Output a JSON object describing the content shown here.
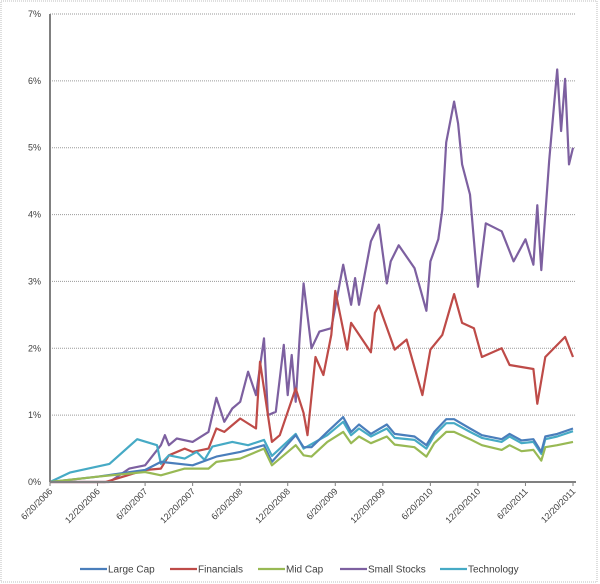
{
  "chart_data": {
    "type": "line",
    "title": "",
    "xlabel": "",
    "ylabel": "",
    "ylim": [
      0,
      7
    ],
    "y_unit": "%",
    "y_ticks": [
      "0%",
      "1%",
      "2%",
      "3%",
      "4%",
      "5%",
      "6%",
      "7%"
    ],
    "x_range": [
      "2006-06-20",
      "2011-12-20"
    ],
    "x_ticks": [
      "6/20/2006",
      "12/20/2006",
      "6/20/2007",
      "12/20/2007",
      "6/20/2008",
      "12/20/2008",
      "6/20/2009",
      "12/20/2009",
      "6/20/2010",
      "12/20/2010",
      "6/20/2011",
      "12/20/2011"
    ],
    "grid": "horizontal",
    "legend": "bottom",
    "series": [
      {
        "name": "Small Stocks",
        "color": "#7d60a0",
        "points": [
          [
            "2006-06-20",
            0
          ],
          [
            "2007-02-05",
            0
          ],
          [
            "2007-04-20",
            0.2
          ],
          [
            "2007-06-20",
            0.25
          ],
          [
            "2007-08-20",
            0.55
          ],
          [
            "2007-09-05",
            0.7
          ],
          [
            "2007-09-20",
            0.55
          ],
          [
            "2007-10-20",
            0.65
          ],
          [
            "2007-12-20",
            0.6
          ],
          [
            "2008-02-20",
            0.75
          ],
          [
            "2008-03-20",
            1.26
          ],
          [
            "2008-04-20",
            0.9
          ],
          [
            "2008-05-20",
            1.1
          ],
          [
            "2008-06-20",
            1.2
          ],
          [
            "2008-07-20",
            1.65
          ],
          [
            "2008-08-20",
            1.3
          ],
          [
            "2008-09-20",
            2.15
          ],
          [
            "2008-10-05",
            1.0
          ],
          [
            "2008-11-05",
            1.05
          ],
          [
            "2008-12-05",
            2.05
          ],
          [
            "2008-12-20",
            1.3
          ],
          [
            "2009-01-05",
            1.9
          ],
          [
            "2009-01-20",
            1.2
          ],
          [
            "2009-02-05",
            2.15
          ],
          [
            "2009-02-20",
            2.97
          ],
          [
            "2009-03-20",
            2.0
          ],
          [
            "2009-04-20",
            2.25
          ],
          [
            "2009-06-05",
            2.3
          ],
          [
            "2009-07-20",
            3.25
          ],
          [
            "2009-08-20",
            2.65
          ],
          [
            "2009-09-05",
            3.05
          ],
          [
            "2009-09-20",
            2.65
          ],
          [
            "2009-11-05",
            3.6
          ],
          [
            "2009-12-05",
            3.85
          ],
          [
            "2010-01-05",
            2.97
          ],
          [
            "2010-01-20",
            3.3
          ],
          [
            "2010-02-20",
            3.54
          ],
          [
            "2010-04-20",
            3.2
          ],
          [
            "2010-06-05",
            2.56
          ],
          [
            "2010-06-20",
            3.3
          ],
          [
            "2010-07-20",
            3.63
          ],
          [
            "2010-08-05",
            4.07
          ],
          [
            "2010-08-20",
            5.08
          ],
          [
            "2010-09-20",
            5.69
          ],
          [
            "2010-10-05",
            5.36
          ],
          [
            "2010-10-20",
            4.75
          ],
          [
            "2010-11-20",
            4.3
          ],
          [
            "2010-12-20",
            2.92
          ],
          [
            "2011-01-20",
            3.87
          ],
          [
            "2011-03-20",
            3.75
          ],
          [
            "2011-05-05",
            3.3
          ],
          [
            "2011-06-20",
            3.63
          ],
          [
            "2011-07-20",
            3.25
          ],
          [
            "2011-08-05",
            4.14
          ],
          [
            "2011-08-20",
            3.17
          ],
          [
            "2011-09-20",
            4.81
          ],
          [
            "2011-10-20",
            6.17
          ],
          [
            "2011-11-05",
            5.25
          ],
          [
            "2011-11-20",
            6.03
          ],
          [
            "2011-12-05",
            4.75
          ],
          [
            "2011-12-20",
            5.0
          ]
        ]
      },
      {
        "name": "Financials",
        "color": "#be4b48",
        "points": [
          [
            "2006-06-20",
            0
          ],
          [
            "2007-01-20",
            0
          ],
          [
            "2007-06-20",
            0.18
          ],
          [
            "2007-08-20",
            0.2
          ],
          [
            "2007-09-20",
            0.4
          ],
          [
            "2007-11-20",
            0.5
          ],
          [
            "2007-12-20",
            0.45
          ],
          [
            "2008-02-20",
            0.5
          ],
          [
            "2008-03-20",
            0.8
          ],
          [
            "2008-04-20",
            0.75
          ],
          [
            "2008-06-20",
            0.95
          ],
          [
            "2008-08-20",
            0.8
          ],
          [
            "2008-09-05",
            1.8
          ],
          [
            "2008-10-20",
            0.6
          ],
          [
            "2008-11-20",
            0.7
          ],
          [
            "2009-01-20",
            1.4
          ],
          [
            "2009-02-20",
            1.03
          ],
          [
            "2009-03-05",
            0.7
          ],
          [
            "2009-04-05",
            1.87
          ],
          [
            "2009-05-05",
            1.6
          ],
          [
            "2009-06-05",
            2.2
          ],
          [
            "2009-06-20",
            2.86
          ],
          [
            "2009-08-05",
            1.98
          ],
          [
            "2009-08-20",
            2.38
          ],
          [
            "2009-11-05",
            1.94
          ],
          [
            "2009-11-20",
            2.53
          ],
          [
            "2009-12-05",
            2.64
          ],
          [
            "2010-02-05",
            1.98
          ],
          [
            "2010-03-20",
            2.13
          ],
          [
            "2010-05-20",
            1.3
          ],
          [
            "2010-06-20",
            1.98
          ],
          [
            "2010-08-05",
            2.2
          ],
          [
            "2010-09-20",
            2.81
          ],
          [
            "2010-10-20",
            2.38
          ],
          [
            "2010-12-05",
            2.3
          ],
          [
            "2011-01-05",
            1.87
          ],
          [
            "2011-03-20",
            2.0
          ],
          [
            "2011-04-20",
            1.75
          ],
          [
            "2011-07-20",
            1.69
          ],
          [
            "2011-08-05",
            1.17
          ],
          [
            "2011-09-05",
            1.87
          ],
          [
            "2011-11-20",
            2.17
          ],
          [
            "2011-12-20",
            1.87
          ]
        ]
      },
      {
        "name": "Technology",
        "color": "#46aac5",
        "points": [
          [
            "2006-06-20",
            0
          ],
          [
            "2006-09-05",
            0.14
          ],
          [
            "2007-02-05",
            0.27
          ],
          [
            "2007-05-20",
            0.64
          ],
          [
            "2007-08-05",
            0.55
          ],
          [
            "2007-08-20",
            0.27
          ],
          [
            "2007-09-20",
            0.4
          ],
          [
            "2007-11-20",
            0.35
          ],
          [
            "2008-01-05",
            0.45
          ],
          [
            "2008-02-05",
            0.33
          ],
          [
            "2008-03-05",
            0.53
          ],
          [
            "2008-05-20",
            0.6
          ],
          [
            "2008-07-20",
            0.55
          ],
          [
            "2008-09-20",
            0.63
          ],
          [
            "2008-10-20",
            0.39
          ],
          [
            "2009-01-20",
            0.72
          ],
          [
            "2009-02-20",
            0.5
          ],
          [
            "2009-05-20",
            0.7
          ],
          [
            "2009-07-20",
            0.9
          ],
          [
            "2009-08-20",
            0.7
          ],
          [
            "2009-09-20",
            0.8
          ],
          [
            "2009-11-05",
            0.68
          ],
          [
            "2010-01-05",
            0.8
          ],
          [
            "2010-02-05",
            0.66
          ],
          [
            "2010-04-20",
            0.63
          ],
          [
            "2010-06-05",
            0.5
          ],
          [
            "2010-07-05",
            0.7
          ],
          [
            "2010-08-20",
            0.88
          ],
          [
            "2010-09-20",
            0.88
          ],
          [
            "2010-11-20",
            0.75
          ],
          [
            "2011-01-05",
            0.66
          ],
          [
            "2011-03-20",
            0.6
          ],
          [
            "2011-04-20",
            0.68
          ],
          [
            "2011-06-05",
            0.58
          ],
          [
            "2011-07-20",
            0.6
          ],
          [
            "2011-08-20",
            0.42
          ],
          [
            "2011-09-05",
            0.64
          ],
          [
            "2011-10-20",
            0.68
          ],
          [
            "2011-12-20",
            0.76
          ]
        ]
      },
      {
        "name": "Large Cap",
        "color": "#4a7ebb",
        "points": [
          [
            "2006-06-20",
            0
          ],
          [
            "2006-12-20",
            0.08
          ],
          [
            "2007-06-20",
            0.18
          ],
          [
            "2007-08-20",
            0.3
          ],
          [
            "2007-12-20",
            0.25
          ],
          [
            "2008-03-20",
            0.38
          ],
          [
            "2008-06-20",
            0.45
          ],
          [
            "2008-09-20",
            0.55
          ],
          [
            "2008-10-20",
            0.3
          ],
          [
            "2009-01-20",
            0.7
          ],
          [
            "2009-02-20",
            0.52
          ],
          [
            "2009-03-20",
            0.52
          ],
          [
            "2009-05-20",
            0.75
          ],
          [
            "2009-07-20",
            0.97
          ],
          [
            "2009-08-20",
            0.75
          ],
          [
            "2009-09-20",
            0.86
          ],
          [
            "2009-11-05",
            0.72
          ],
          [
            "2010-01-05",
            0.86
          ],
          [
            "2010-02-05",
            0.72
          ],
          [
            "2010-04-20",
            0.68
          ],
          [
            "2010-06-05",
            0.55
          ],
          [
            "2010-07-05",
            0.75
          ],
          [
            "2010-08-20",
            0.94
          ],
          [
            "2010-09-20",
            0.94
          ],
          [
            "2010-11-20",
            0.8
          ],
          [
            "2011-01-05",
            0.7
          ],
          [
            "2011-03-20",
            0.64
          ],
          [
            "2011-04-20",
            0.72
          ],
          [
            "2011-06-05",
            0.62
          ],
          [
            "2011-07-20",
            0.64
          ],
          [
            "2011-08-20",
            0.45
          ],
          [
            "2011-09-05",
            0.68
          ],
          [
            "2011-10-20",
            0.72
          ],
          [
            "2011-12-20",
            0.8
          ]
        ]
      },
      {
        "name": "Mid Cap",
        "color": "#98b954",
        "points": [
          [
            "2006-06-20",
            0
          ],
          [
            "2006-12-20",
            0.08
          ],
          [
            "2007-06-20",
            0.15
          ],
          [
            "2007-08-20",
            0.1
          ],
          [
            "2007-11-20",
            0.2
          ],
          [
            "2008-02-20",
            0.2
          ],
          [
            "2008-03-20",
            0.3
          ],
          [
            "2008-06-20",
            0.35
          ],
          [
            "2008-09-20",
            0.5
          ],
          [
            "2008-10-20",
            0.25
          ],
          [
            "2009-01-20",
            0.55
          ],
          [
            "2009-02-20",
            0.4
          ],
          [
            "2009-03-20",
            0.38
          ],
          [
            "2009-05-20",
            0.6
          ],
          [
            "2009-07-20",
            0.75
          ],
          [
            "2009-08-20",
            0.58
          ],
          [
            "2009-09-20",
            0.68
          ],
          [
            "2009-11-05",
            0.58
          ],
          [
            "2010-01-05",
            0.68
          ],
          [
            "2010-02-05",
            0.56
          ],
          [
            "2010-04-20",
            0.52
          ],
          [
            "2010-06-05",
            0.38
          ],
          [
            "2010-07-05",
            0.58
          ],
          [
            "2010-08-20",
            0.75
          ],
          [
            "2010-09-20",
            0.75
          ],
          [
            "2010-11-20",
            0.64
          ],
          [
            "2011-01-05",
            0.55
          ],
          [
            "2011-03-20",
            0.48
          ],
          [
            "2011-04-20",
            0.55
          ],
          [
            "2011-06-05",
            0.46
          ],
          [
            "2011-07-20",
            0.48
          ],
          [
            "2011-08-20",
            0.32
          ],
          [
            "2011-09-05",
            0.52
          ],
          [
            "2011-10-20",
            0.55
          ],
          [
            "2011-12-20",
            0.6
          ]
        ]
      }
    ],
    "legend_order": [
      "Large Cap",
      "Financials",
      "Mid Cap",
      "Small Stocks",
      "Technology"
    ]
  }
}
